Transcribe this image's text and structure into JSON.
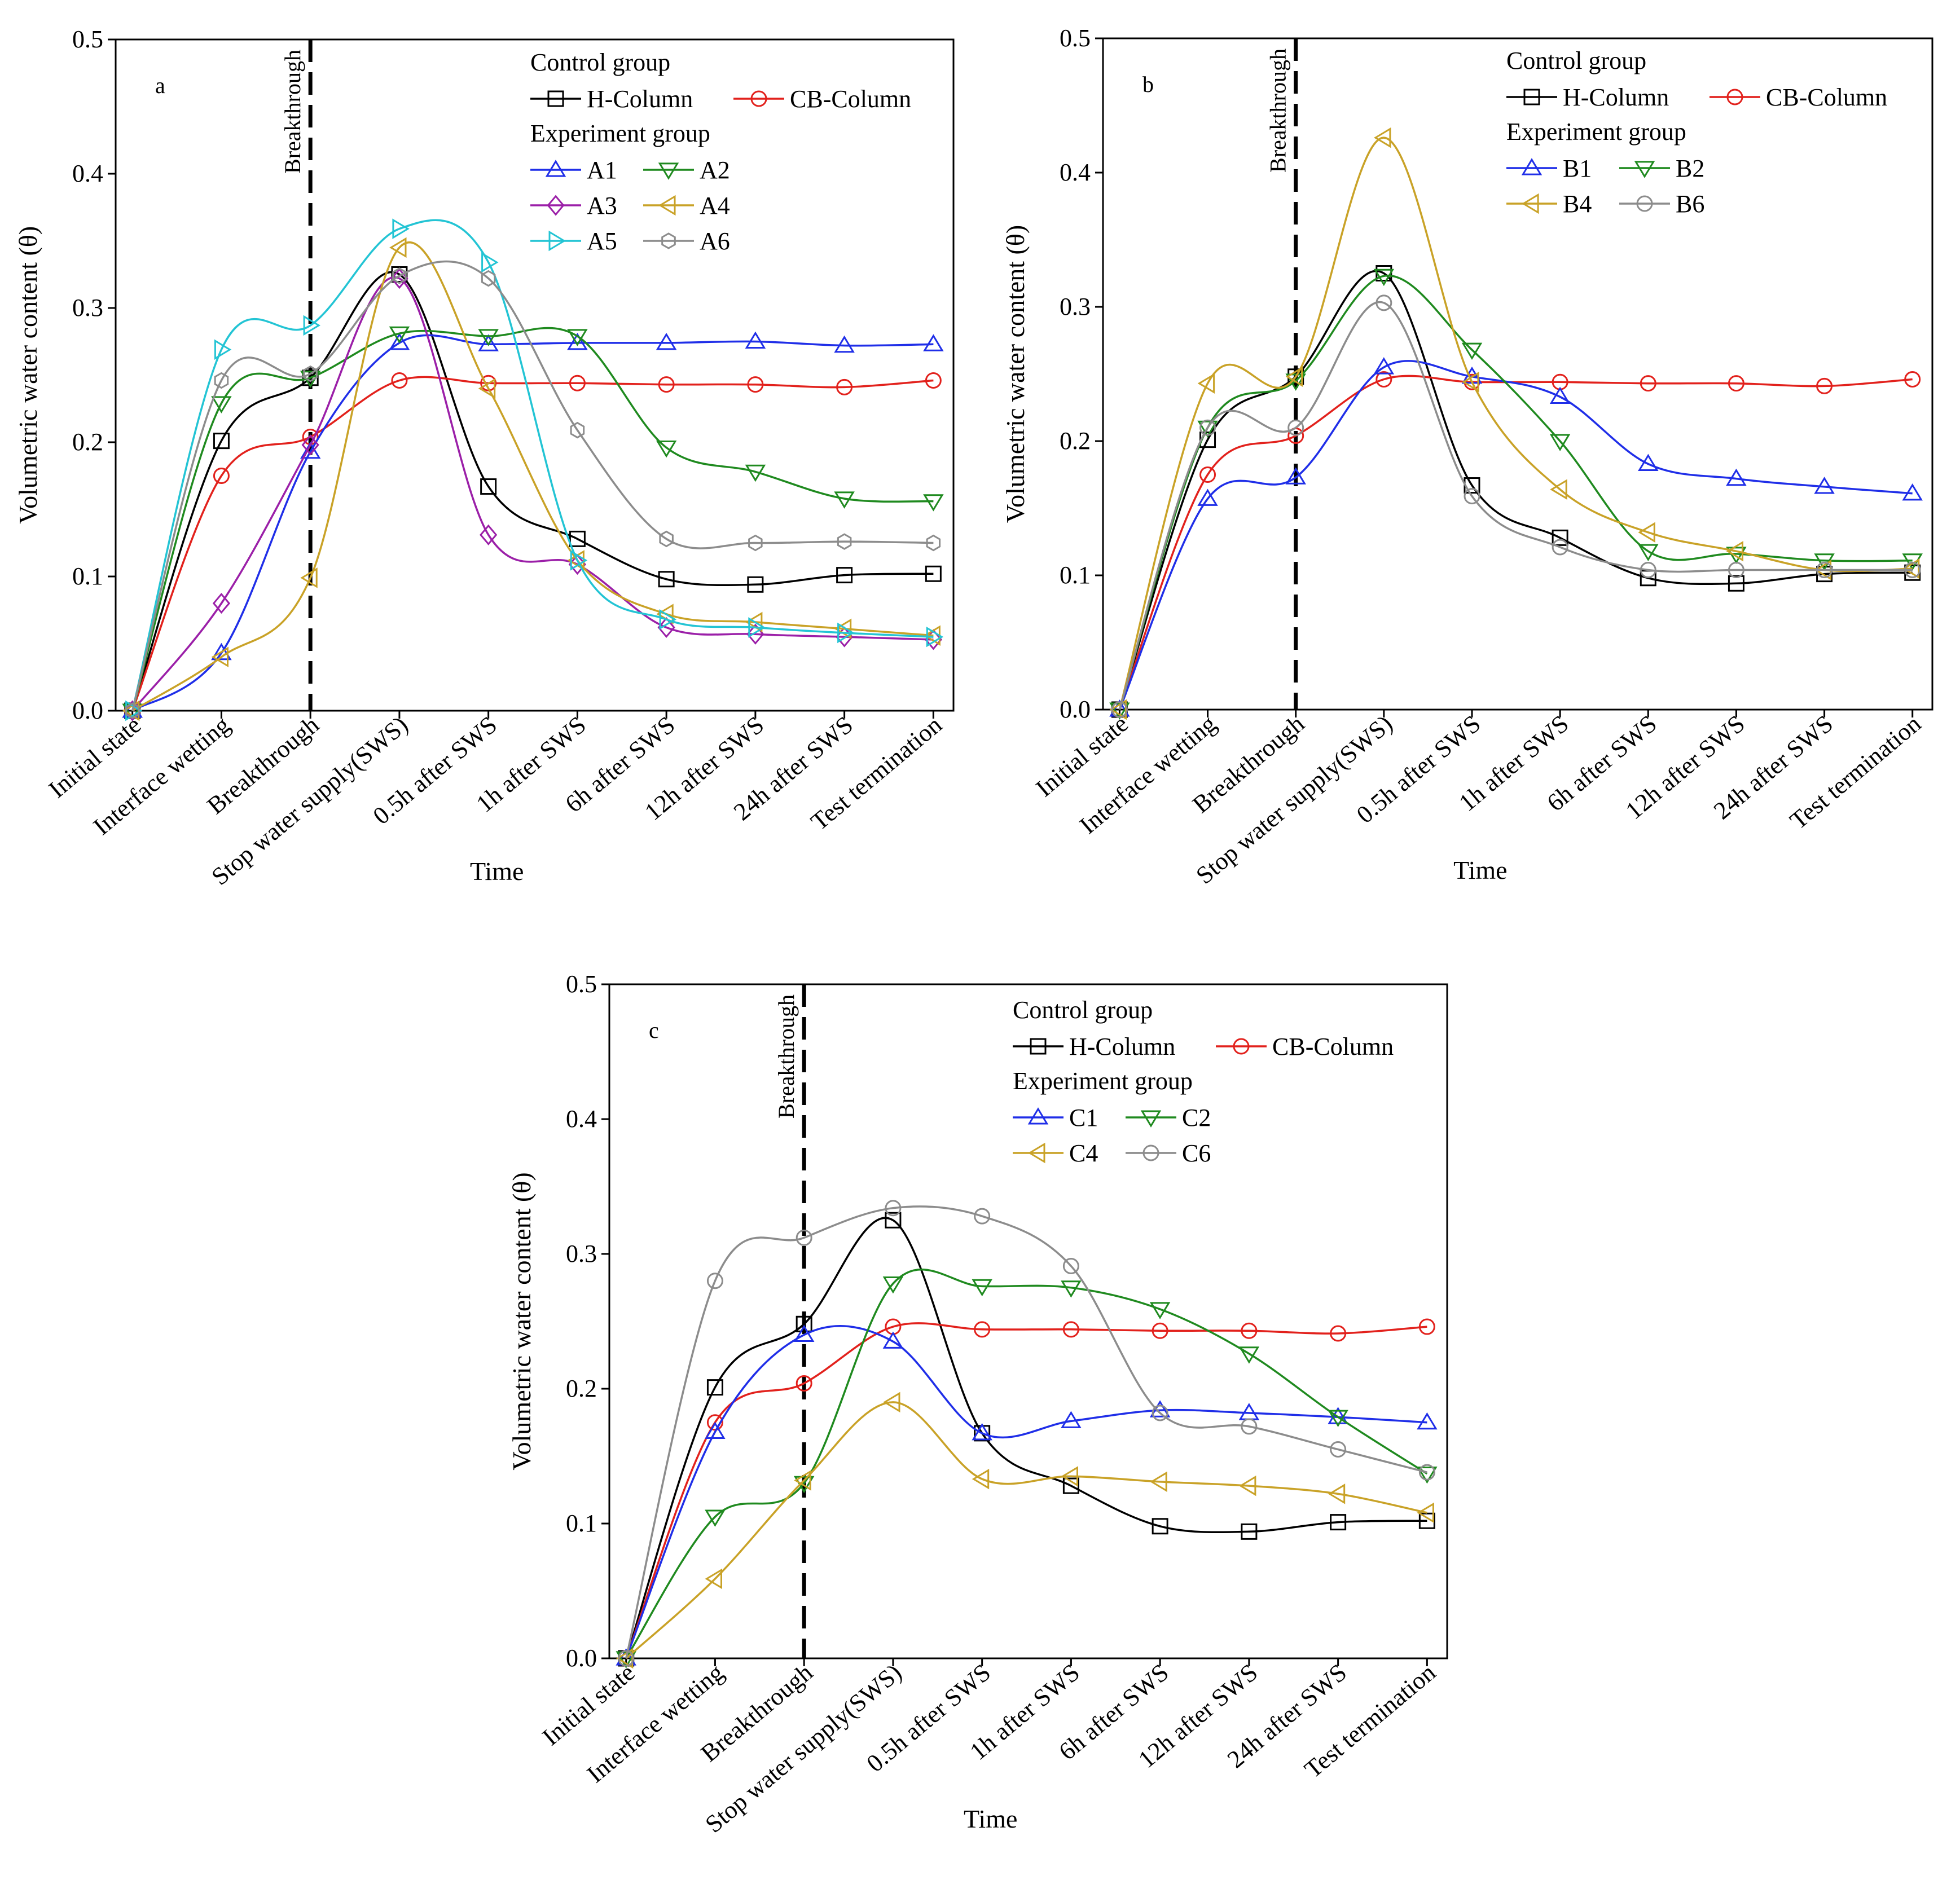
{
  "chart_data": [
    {
      "type": "line",
      "panel": "a",
      "xlabel": "Time",
      "ylabel": "Volumetric water content (θ)",
      "ylim": [
        0,
        0.5
      ],
      "yticks": [
        "0.0",
        "0.1",
        "0.2",
        "0.3",
        "0.4",
        "0.5"
      ],
      "categories": [
        "Initial state",
        "Interface wetting",
        "Breakthrough",
        "Stop water supply(SWS)",
        "0.5h after SWS",
        "1h after SWS",
        "6h after SWS",
        "12h after SWS",
        "24h after SWS",
        "Test termination"
      ],
      "breakthrough_label": "Breakthrough",
      "breakthrough_index": 2,
      "legend_control": "Control group",
      "legend_experiment": "Experiment group",
      "series": [
        {
          "name": "H-Column",
          "group": "control",
          "color": "#000000",
          "marker": "square",
          "values": [
            0.0,
            0.201,
            0.248,
            0.325,
            0.167,
            0.128,
            0.098,
            0.094,
            0.101,
            0.102
          ]
        },
        {
          "name": "CB-Column",
          "group": "control",
          "color": "#e2211c",
          "marker": "circle",
          "values": [
            0.0,
            0.175,
            0.204,
            0.246,
            0.244,
            0.244,
            0.243,
            0.243,
            0.241,
            0.246
          ]
        },
        {
          "name": "A1",
          "group": "experiment",
          "color": "#1f2ee8",
          "marker": "triangle-up",
          "values": [
            0.0,
            0.043,
            0.193,
            0.274,
            0.273,
            0.274,
            0.274,
            0.275,
            0.272,
            0.273
          ]
        },
        {
          "name": "A2",
          "group": "experiment",
          "color": "#1f8a1f",
          "marker": "triangle-down",
          "values": [
            0.0,
            0.229,
            0.248,
            0.281,
            0.279,
            0.279,
            0.196,
            0.178,
            0.158,
            0.156
          ]
        },
        {
          "name": "A3",
          "group": "experiment",
          "color": "#9b1fa8",
          "marker": "diamond",
          "values": [
            0.0,
            0.08,
            0.198,
            0.322,
            0.131,
            0.109,
            0.062,
            0.057,
            0.055,
            0.053
          ]
        },
        {
          "name": "A4",
          "group": "experiment",
          "color": "#c9a227",
          "marker": "triangle-left",
          "values": [
            0.0,
            0.04,
            0.099,
            0.345,
            0.24,
            0.112,
            0.072,
            0.066,
            0.061,
            0.056
          ]
        },
        {
          "name": "A5",
          "group": "experiment",
          "color": "#23c4d4",
          "marker": "triangle-right",
          "values": [
            0.0,
            0.269,
            0.287,
            0.359,
            0.334,
            0.112,
            0.068,
            0.062,
            0.058,
            0.055
          ]
        },
        {
          "name": "A6",
          "group": "experiment",
          "color": "#8c8c8c",
          "marker": "hexagon",
          "values": [
            0.0,
            0.246,
            0.251,
            0.324,
            0.322,
            0.209,
            0.128,
            0.125,
            0.126,
            0.125
          ]
        }
      ]
    },
    {
      "type": "line",
      "panel": "b",
      "xlabel": "Time",
      "ylabel": "Volumetric water content (θ)",
      "ylim": [
        0,
        0.5
      ],
      "yticks": [
        "0.0",
        "0.1",
        "0.2",
        "0.3",
        "0.4",
        "0.5"
      ],
      "categories": [
        "Initial state",
        "Interface wetting",
        "Breakthrough",
        "Stop water supply(SWS)",
        "0.5h after SWS",
        "1h after SWS",
        "6h after SWS",
        "12h after SWS",
        "24h after SWS",
        "Test termination"
      ],
      "breakthrough_label": "Breakthrough",
      "breakthrough_index": 2,
      "legend_control": "Control group",
      "legend_experiment": "Experiment group",
      "series": [
        {
          "name": "H-Column",
          "group": "control",
          "color": "#000000",
          "marker": "square",
          "values": [
            0.0,
            0.201,
            0.248,
            0.325,
            0.167,
            0.128,
            0.098,
            0.094,
            0.101,
            0.102
          ]
        },
        {
          "name": "CB-Column",
          "group": "control",
          "color": "#e2211c",
          "marker": "circle",
          "values": [
            0.0,
            0.175,
            0.204,
            0.246,
            0.244,
            0.244,
            0.243,
            0.243,
            0.241,
            0.246
          ]
        },
        {
          "name": "B1",
          "group": "experiment",
          "color": "#1f2ee8",
          "marker": "triangle-up",
          "values": [
            0.0,
            0.157,
            0.173,
            0.255,
            0.248,
            0.233,
            0.183,
            0.172,
            0.166,
            0.161
          ]
        },
        {
          "name": "B2",
          "group": "experiment",
          "color": "#1f8a1f",
          "marker": "triangle-down",
          "values": [
            0.0,
            0.21,
            0.245,
            0.323,
            0.268,
            0.2,
            0.118,
            0.116,
            0.111,
            0.111
          ]
        },
        {
          "name": "B4",
          "group": "experiment",
          "color": "#c9a227",
          "marker": "triangle-left",
          "values": [
            0.0,
            0.243,
            0.248,
            0.426,
            0.244,
            0.164,
            0.132,
            0.118,
            0.104,
            0.105
          ]
        },
        {
          "name": "B6",
          "group": "experiment",
          "color": "#8c8c8c",
          "marker": "circle",
          "values": [
            0.0,
            0.21,
            0.21,
            0.303,
            0.159,
            0.121,
            0.104,
            0.104,
            0.104,
            0.104
          ]
        }
      ]
    },
    {
      "type": "line",
      "panel": "c",
      "xlabel": "Time",
      "ylabel": "Volumetric water content (θ)",
      "ylim": [
        0,
        0.5
      ],
      "yticks": [
        "0.0",
        "0.1",
        "0.2",
        "0.3",
        "0.4",
        "0.5"
      ],
      "categories": [
        "Initial state",
        "Interface wetting",
        "Breakthrough",
        "Stop water supply(SWS)",
        "0.5h after SWS",
        "1h after SWS",
        "6h after SWS",
        "12h after SWS",
        "24h after SWS",
        "Test termination"
      ],
      "breakthrough_label": "Breakthrough",
      "breakthrough_index": 2,
      "legend_control": "Control group",
      "legend_experiment": "Experiment group",
      "series": [
        {
          "name": "H-Column",
          "group": "control",
          "color": "#000000",
          "marker": "square",
          "values": [
            0.0,
            0.201,
            0.248,
            0.325,
            0.167,
            0.128,
            0.098,
            0.094,
            0.101,
            0.102
          ]
        },
        {
          "name": "CB-Column",
          "group": "control",
          "color": "#e2211c",
          "marker": "circle",
          "values": [
            0.0,
            0.175,
            0.204,
            0.246,
            0.244,
            0.244,
            0.243,
            0.243,
            0.241,
            0.246
          ]
        },
        {
          "name": "C1",
          "group": "experiment",
          "color": "#1f2ee8",
          "marker": "triangle-up",
          "values": [
            0.0,
            0.168,
            0.24,
            0.235,
            0.167,
            0.176,
            0.184,
            0.182,
            0.179,
            0.175
          ]
        },
        {
          "name": "C2",
          "group": "experiment",
          "color": "#1f8a1f",
          "marker": "triangle-down",
          "values": [
            0.0,
            0.105,
            0.13,
            0.278,
            0.276,
            0.275,
            0.259,
            0.226,
            0.179,
            0.137
          ]
        },
        {
          "name": "C4",
          "group": "experiment",
          "color": "#c9a227",
          "marker": "triangle-left",
          "values": [
            0.0,
            0.059,
            0.132,
            0.19,
            0.133,
            0.135,
            0.131,
            0.128,
            0.122,
            0.108
          ]
        },
        {
          "name": "C6",
          "group": "experiment",
          "color": "#8c8c8c",
          "marker": "circle",
          "values": [
            0.0,
            0.28,
            0.312,
            0.334,
            0.328,
            0.291,
            0.182,
            0.172,
            0.155,
            0.138
          ]
        }
      ]
    }
  ]
}
